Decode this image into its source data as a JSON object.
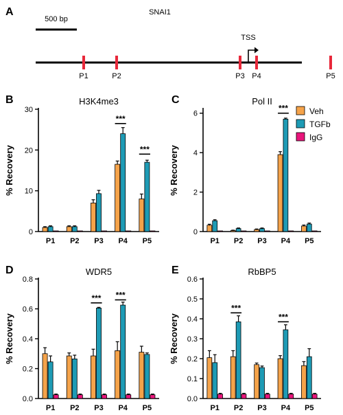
{
  "panel_a": {
    "letter": "A",
    "gene": "SNAI1",
    "scale_label": "500 bp",
    "tss_label": "TSS",
    "sites": [
      {
        "label": "P1",
        "pos": 0.2
      },
      {
        "label": "P2",
        "pos": 0.6
      },
      {
        "label": "P3",
        "pos": 2.1
      },
      {
        "label": "P4",
        "pos": 2.3
      },
      {
        "label": "P5",
        "pos": 3.2
      }
    ],
    "tss_pos": 2.2,
    "scale_bp": 500
  },
  "legend": {
    "items": [
      {
        "name": "Veh",
        "color": "#f5a34a"
      },
      {
        "name": "TGFb",
        "color": "#1e9bb5"
      },
      {
        "name": "IgG",
        "color": "#e8157b"
      }
    ]
  },
  "chart_data": [
    {
      "letter": "B",
      "type": "bar",
      "title": "H3K4me3",
      "ylabel": "% Recovery",
      "categories": [
        "P1",
        "P2",
        "P3",
        "P4",
        "P5"
      ],
      "ylim": [
        0,
        30
      ],
      "yticks": [
        0,
        10,
        20,
        30
      ],
      "tick_format": "int",
      "series": [
        {
          "name": "Veh",
          "values": [
            1.0,
            1.2,
            7.0,
            16.5,
            8.0
          ],
          "errors": [
            0.2,
            0.2,
            0.8,
            0.8,
            1.2
          ]
        },
        {
          "name": "TGFb",
          "values": [
            1.2,
            1.2,
            9.3,
            24.0,
            17.0
          ],
          "errors": [
            0.2,
            0.2,
            0.8,
            1.5,
            0.5
          ]
        },
        {
          "name": "IgG",
          "values": [
            0.05,
            0.05,
            0.05,
            0.05,
            0.05
          ],
          "errors": [
            0,
            0,
            0,
            0,
            0
          ]
        }
      ],
      "significance": [
        {
          "category": "P4",
          "label": "***",
          "y": 26.5
        },
        {
          "category": "P5",
          "label": "***",
          "y": 19.0
        }
      ]
    },
    {
      "letter": "C",
      "type": "bar",
      "title": "Pol II",
      "ylabel": "% Recovery",
      "categories": [
        "P1",
        "P2",
        "P3",
        "P4",
        "P5"
      ],
      "ylim": [
        0,
        6.2
      ],
      "yticks": [
        0,
        2,
        4,
        6
      ],
      "tick_format": "int",
      "series": [
        {
          "name": "Veh",
          "values": [
            0.32,
            0.05,
            0.1,
            3.9,
            0.28
          ],
          "errors": [
            0.05,
            0.02,
            0.03,
            0.15,
            0.05
          ]
        },
        {
          "name": "TGFb",
          "values": [
            0.55,
            0.15,
            0.15,
            5.7,
            0.38
          ],
          "errors": [
            0.05,
            0.03,
            0.03,
            0.05,
            0.05
          ]
        },
        {
          "name": "IgG",
          "values": [
            0.02,
            0.02,
            0.02,
            0.02,
            0.02
          ],
          "errors": [
            0,
            0,
            0,
            0,
            0
          ]
        }
      ],
      "significance": [
        {
          "category": "P4",
          "label": "***",
          "y": 6.0
        }
      ]
    },
    {
      "letter": "D",
      "type": "bar",
      "title": "WDR5",
      "ylabel": "% Recovery",
      "categories": [
        "P1",
        "P2",
        "P3",
        "P4",
        "P5"
      ],
      "ylim": [
        0,
        0.8
      ],
      "yticks": [
        0,
        0.2,
        0.4,
        0.6,
        0.8
      ],
      "tick_format": "1dp",
      "series": [
        {
          "name": "Veh",
          "values": [
            0.3,
            0.285,
            0.285,
            0.32,
            0.31
          ],
          "errors": [
            0.04,
            0.02,
            0.045,
            0.06,
            0.04
          ]
        },
        {
          "name": "TGFb",
          "values": [
            0.245,
            0.265,
            0.605,
            0.625,
            0.295
          ],
          "errors": [
            0.04,
            0.025,
            0.005,
            0.02,
            0.01
          ]
        },
        {
          "name": "IgG",
          "values": [
            0.025,
            0.025,
            0.025,
            0.025,
            0.025
          ],
          "errors": [
            0.005,
            0.005,
            0.005,
            0.005,
            0.005
          ]
        }
      ],
      "significance": [
        {
          "category": "P3",
          "label": "***",
          "y": 0.64
        },
        {
          "category": "P4",
          "label": "***",
          "y": 0.66
        }
      ]
    },
    {
      "letter": "E",
      "type": "bar",
      "title": "RbBP5",
      "ylabel": "% Recovery",
      "categories": [
        "P1",
        "P2",
        "P3",
        "P4",
        "P5"
      ],
      "ylim": [
        0,
        0.6
      ],
      "yticks": [
        0,
        0.1,
        0.2,
        0.3,
        0.4,
        0.5,
        0.6
      ],
      "tick_format": "1dp",
      "series": [
        {
          "name": "Veh",
          "values": [
            0.205,
            0.21,
            0.17,
            0.2,
            0.165
          ],
          "errors": [
            0.035,
            0.03,
            0.008,
            0.015,
            0.02
          ]
        },
        {
          "name": "TGFb",
          "values": [
            0.18,
            0.385,
            0.155,
            0.345,
            0.21
          ],
          "errors": [
            0.04,
            0.03,
            0.008,
            0.025,
            0.04
          ]
        },
        {
          "name": "IgG",
          "values": [
            0.022,
            0.022,
            0.022,
            0.022,
            0.022
          ],
          "errors": [
            0.004,
            0.004,
            0.004,
            0.004,
            0.004
          ]
        }
      ],
      "significance": [
        {
          "category": "P2",
          "label": "***",
          "y": 0.43
        },
        {
          "category": "P4",
          "label": "***",
          "y": 0.385
        }
      ]
    }
  ]
}
